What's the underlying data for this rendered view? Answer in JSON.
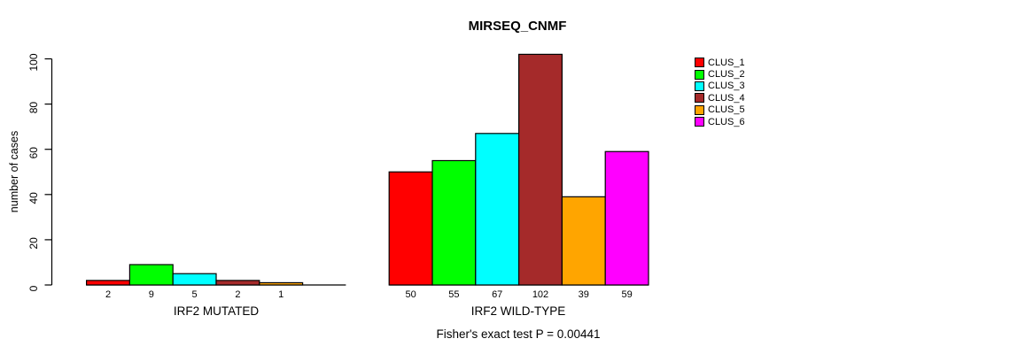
{
  "chart_data": {
    "type": "bar",
    "title": "MIRSEQ_CNMF",
    "ylabel": "number of cases",
    "ylim": [
      0,
      100
    ],
    "yticks": [
      0,
      20,
      40,
      60,
      80,
      100
    ],
    "grid": false,
    "legend_position": "right",
    "clusters": [
      "CLUS_1",
      "CLUS_2",
      "CLUS_3",
      "CLUS_4",
      "CLUS_5",
      "CLUS_6"
    ],
    "colors": [
      "#ff0000",
      "#00ff00",
      "#00ffff",
      "#a52a2a",
      "#ffa500",
      "#ff00ff"
    ],
    "groups": [
      {
        "label": "IRF2 MUTATED",
        "values": [
          2,
          9,
          5,
          2,
          1,
          0
        ],
        "bar_labels": [
          "2",
          "9",
          "5",
          "2",
          "1",
          ""
        ]
      },
      {
        "label": "IRF2 WILD-TYPE",
        "values": [
          50,
          55,
          67,
          102,
          39,
          59
        ],
        "bar_labels": [
          "50",
          "55",
          "67",
          "102",
          "39",
          "59"
        ]
      }
    ],
    "annotation": "Fisher's exact test P = 0.00441"
  }
}
